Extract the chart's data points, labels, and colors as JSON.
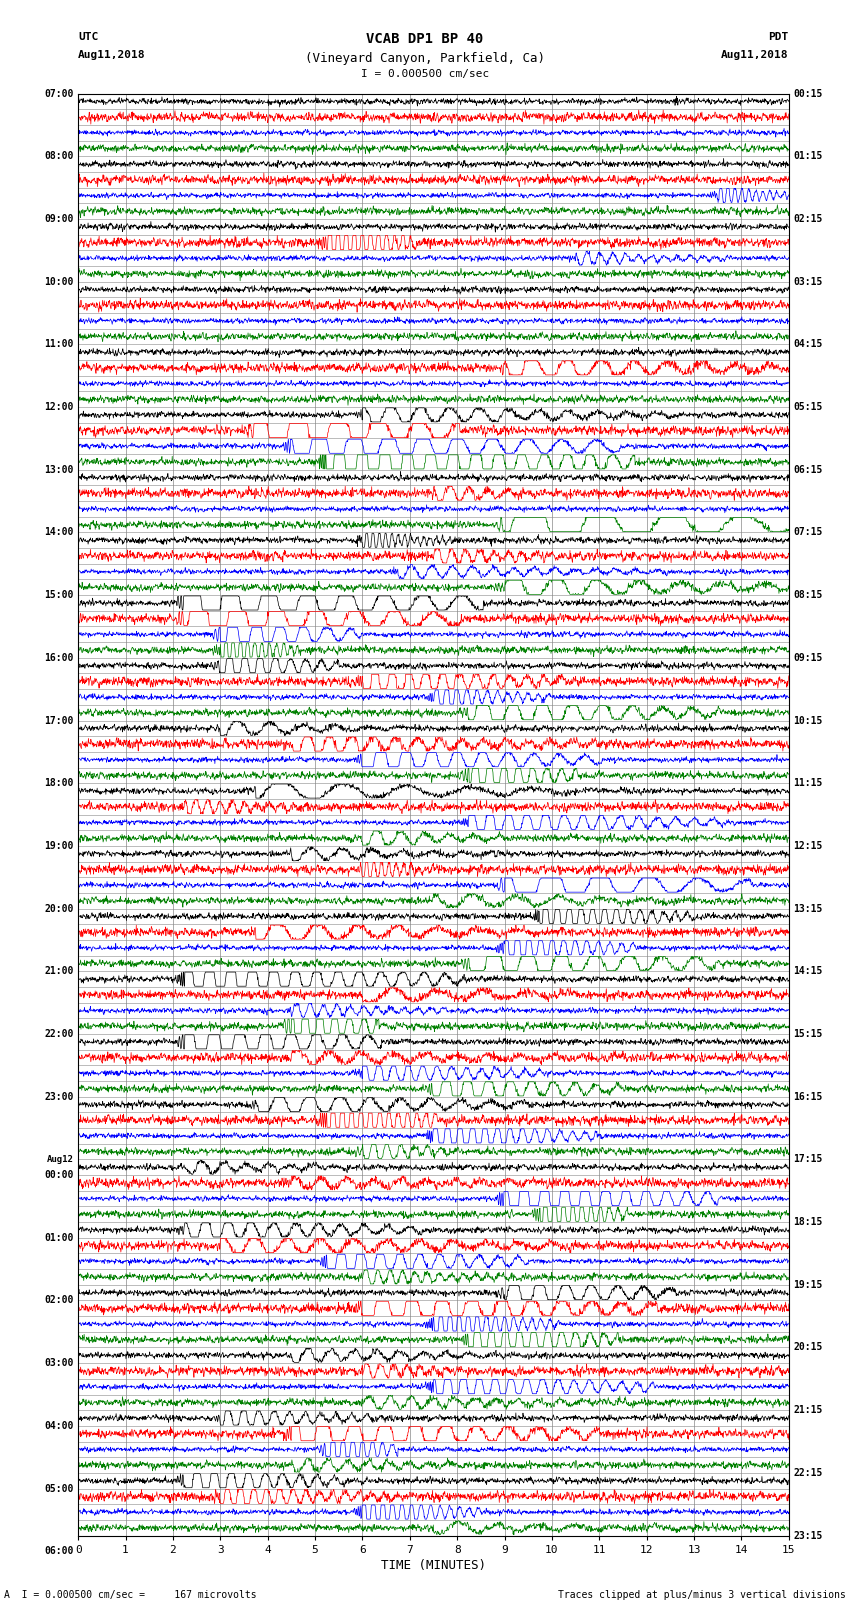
{
  "title_line1": "VCAB DP1 BP 40",
  "title_line2": "(Vineyard Canyon, Parkfield, Ca)",
  "scale_label": "I = 0.000500 cm/sec",
  "left_label_top": "UTC",
  "left_label_date": "Aug11,2018",
  "right_label_top": "PDT",
  "right_label_date": "Aug11,2018",
  "bottom_label": "TIME (MINUTES)",
  "bottom_note_left": "A  I = 0.000500 cm/sec =     167 microvolts",
  "bottom_note_right": "Traces clipped at plus/minus 3 vertical divisions",
  "utc_times": [
    "07:00",
    "",
    "",
    "",
    "08:00",
    "",
    "",
    "",
    "09:00",
    "",
    "",
    "",
    "10:00",
    "",
    "",
    "",
    "11:00",
    "",
    "",
    "",
    "12:00",
    "",
    "",
    "",
    "13:00",
    "",
    "",
    "",
    "14:00",
    "",
    "",
    "",
    "15:00",
    "",
    "",
    "",
    "16:00",
    "",
    "",
    "",
    "17:00",
    "",
    "",
    "",
    "18:00",
    "",
    "",
    "",
    "19:00",
    "",
    "",
    "",
    "20:00",
    "",
    "",
    "",
    "21:00",
    "",
    "",
    "",
    "22:00",
    "",
    "",
    "",
    "23:00",
    "",
    "",
    "",
    "Aug12",
    "00:00",
    "",
    "",
    "",
    "01:00",
    "",
    "",
    "",
    "02:00",
    "",
    "",
    "",
    "03:00",
    "",
    "",
    "",
    "04:00",
    "",
    "",
    "",
    "05:00",
    "",
    "",
    "",
    "06:00",
    "",
    ""
  ],
  "pdt_times": [
    "00:15",
    "",
    "",
    "",
    "01:15",
    "",
    "",
    "",
    "02:15",
    "",
    "",
    "",
    "03:15",
    "",
    "",
    "",
    "04:15",
    "",
    "",
    "",
    "05:15",
    "",
    "",
    "",
    "06:15",
    "",
    "",
    "",
    "07:15",
    "",
    "",
    "",
    "08:15",
    "",
    "",
    "",
    "09:15",
    "",
    "",
    "",
    "10:15",
    "",
    "",
    "",
    "11:15",
    "",
    "",
    "",
    "12:15",
    "",
    "",
    "",
    "13:15",
    "",
    "",
    "",
    "14:15",
    "",
    "",
    "",
    "15:15",
    "",
    "",
    "",
    "16:15",
    "",
    "",
    "",
    "17:15",
    "",
    "",
    "",
    "18:15",
    "",
    "",
    "",
    "19:15",
    "",
    "",
    "",
    "20:15",
    "",
    "",
    "",
    "21:15",
    "",
    "",
    "",
    "22:15",
    "",
    "",
    "",
    "23:15",
    "",
    ""
  ],
  "colors": [
    "black",
    "red",
    "blue",
    "green"
  ],
  "n_groups": 23,
  "n_points": 1800,
  "x_min": 0,
  "x_max": 15,
  "bg_color": "white",
  "grid_color": "#888888",
  "trace_lw": 0.5,
  "seed": 42
}
